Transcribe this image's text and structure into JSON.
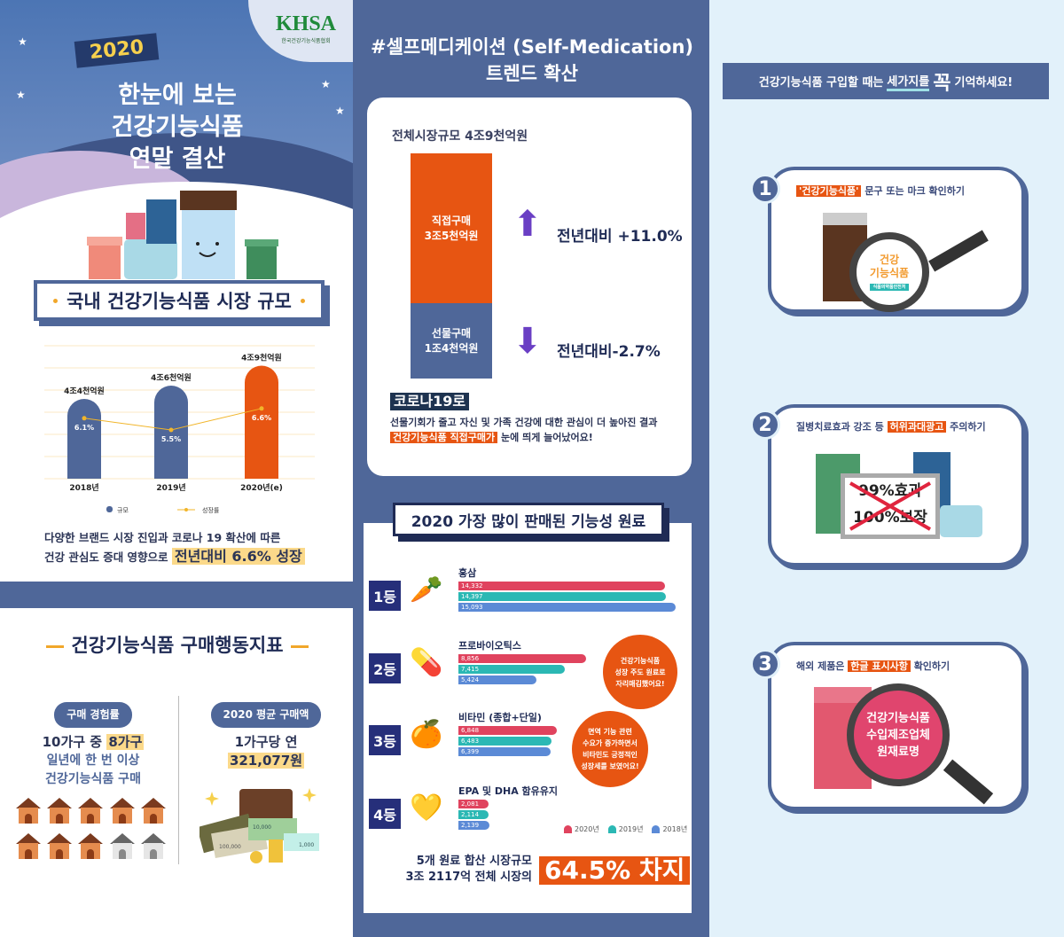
{
  "header": {
    "logo": "KHSA",
    "logo_sub": "한국건강기능식품협회",
    "year": "2020",
    "title_lines": [
      "한눈에 보는",
      "건강기능식품",
      "연말 결산"
    ]
  },
  "market": {
    "section_title": "국내 건강기능식품 시장 규모",
    "summary_line1": "다양한 브랜드 시장 진입과 코로나 19 확산에 따른",
    "summary_line2": "건강 관심도 증대 영향으로",
    "summary_highlight": "전년대비 6.6% 성장"
  },
  "behavior": {
    "section_title": "건강기능식품 구매행동지표",
    "left": {
      "tag": "구매 경험률",
      "line1_pre": "10가구 중",
      "line1_hl": "8가구",
      "line2": "일년에 한 번 이상",
      "line3": "건강기능식품 구매",
      "households_total": 10,
      "households_purchasing": 8
    },
    "right": {
      "tag": "2020 평균 구매액",
      "line1": "1가구당 연",
      "amount": "321,077원",
      "bills": [
        "100,000",
        "10,000",
        "1,000"
      ]
    }
  },
  "trend": {
    "title_line1": "#셀프메디케이션 (Self-Medication)",
    "title_line2": "트렌드 확산",
    "total": "전체시장규모 4조9천억원",
    "direct": {
      "label": "직접구매",
      "value": "3조5천억원",
      "yoy": "전년대비 +11.0%"
    },
    "gift": {
      "label": "선물구매",
      "value": "1조4천억원",
      "yoy": "전년대비-2.7%"
    },
    "covid_tag": "코로나19로",
    "covid_line1": "선물기회가 줄고 자신 및 가족 건강에 대한 관심이 더 높아진 결과",
    "covid_hl": "건강기능식품 직접구매가",
    "covid_line2": "눈에 띄게 늘어났어요!"
  },
  "ingredients": {
    "title": "2020 가장 많이 판매된 기능성 원료",
    "bubbles": [
      [
        "건강기능식품",
        "성장 주도 원료로",
        "자리매김했어요!"
      ],
      [
        "면역 기능 관련",
        "수요가 증가하면서",
        "비타민도 긍정적인",
        "성장세를 보였어요!"
      ]
    ],
    "share_line1": "5개 원료 합산 시장규모",
    "share_line2": "3조 2117억 전체 시장의",
    "share_pct": "64.5% 차지"
  },
  "tips": {
    "header_pre": "건강기능식품 구입할 때는",
    "header_u": "세가지를",
    "header_big": "꼭",
    "header_post": "기억하세요!",
    "items": [
      {
        "num": "1",
        "hl": "'건강기능식품'",
        "text": "문구 또는 마크 확인하기",
        "art": [
          "건강",
          "기능식품",
          "식품의약품안전처"
        ]
      },
      {
        "num": "2",
        "pre": "질병치료효과 강조 등",
        "hl": "허위과대광고",
        "text": "주의하기",
        "art": [
          "99%효과",
          "100%보장"
        ]
      },
      {
        "num": "3",
        "pre": "해외 제품은",
        "hl": "한글 표시사항",
        "text": "확인하기",
        "art": [
          "건강기능식품",
          "수입제조업체",
          "원재료명"
        ]
      }
    ]
  },
  "colors": {
    "navy": "#4f6799",
    "orange": "#e75512",
    "s2020": "#e0435e",
    "s2019": "#2bb8b4",
    "s2018": "#5b8ad6",
    "growth": "#f1b52a"
  },
  "chart_data": [
    {
      "type": "bar",
      "categories": [
        "2018년",
        "2019년",
        "2020년(e)"
      ],
      "series": [
        {
          "name": "규모",
          "values": [
            4.4,
            4.6,
            4.9
          ],
          "labels": [
            "4조4천억원",
            "4조6천억원",
            "4조9천억원"
          ]
        },
        {
          "name": "성장률",
          "type": "line",
          "values": [
            6.1,
            5.5,
            6.6
          ],
          "labels": [
            "6.1%",
            "5.5%",
            "6.6%"
          ]
        }
      ],
      "legend": "bottom"
    },
    {
      "type": "bar",
      "orientation": "horizontal",
      "categories": [
        {
          "rank": "1등",
          "name": "홍삼"
        },
        {
          "rank": "2등",
          "name": "프로바이오틱스"
        },
        {
          "rank": "3등",
          "name": "비타민 (종합+단일)"
        },
        {
          "rank": "4등",
          "name": "EPA 및 DHA 함유유지"
        }
      ],
      "series": [
        {
          "name": "2020년",
          "values": [
            14332,
            8856,
            6848,
            2081
          ],
          "labels": [
            "14,332",
            "8,856",
            "6,848",
            "2,081"
          ]
        },
        {
          "name": "2019년",
          "values": [
            14397,
            7415,
            6483,
            2114
          ],
          "labels": [
            "14,397",
            "7,415",
            "6,483",
            "2,114"
          ]
        },
        {
          "name": "2018년",
          "values": [
            15093,
            5424,
            6399,
            2139
          ],
          "labels": [
            "15,093",
            "5,424",
            "6,399",
            "2,139"
          ]
        }
      ],
      "legend": "bottom-right"
    }
  ]
}
